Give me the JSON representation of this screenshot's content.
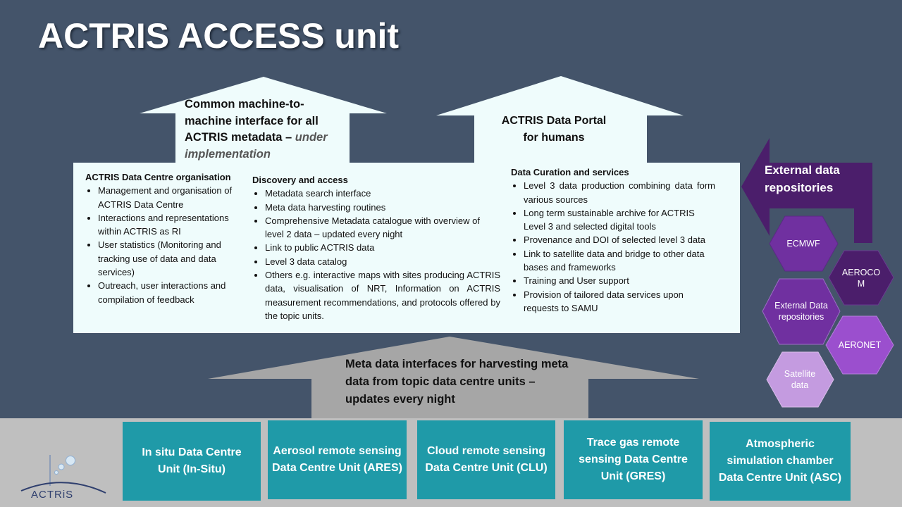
{
  "title": "ACTRIS ACCESS unit",
  "arrows": {
    "left": {
      "text_main": "Common machine-to-machine interface for all ACTRIS metadata – ",
      "text_italic": "under implementation"
    },
    "right": {
      "text": "ACTRIS Data Portal for humans"
    },
    "bottom": {
      "text": "Meta data interfaces for harvesting meta data from topic data centre units – updates every night"
    }
  },
  "panel": {
    "col1": {
      "heading": "ACTRIS Data Centre organisation",
      "items": [
        "Management and organisation of ACTRIS Data Centre",
        "Interactions and representations within ACTRIS as RI",
        "User statistics (Monitoring and tracking use of data and data services)",
        "Outreach, user interactions and compilation of feedback"
      ]
    },
    "col2": {
      "heading": "Discovery and access",
      "items": [
        "Metadata search interface",
        "Meta data harvesting routines",
        "Comprehensive Metadata catalogue with overview of level 2 data – updated every night",
        "Link to public ACTRIS data",
        "Level 3 data catalog",
        "Others e.g. interactive maps with sites producing ACTRIS data, visualisation of NRT, Information on ACTRIS measurement recommendations, and protocols offered by the topic units."
      ]
    },
    "col3": {
      "heading": "Data Curation and services",
      "items": [
        "Level 3 data production combining data form various sources",
        "Long term sustainable archive for ACTRIS Level 3 and selected digital tools",
        "Provenance and DOI of selected level 3 data",
        "Link to satellite data and bridge to other data bases and frameworks",
        "Training and User support",
        "Provision of tailored data services upon requests to SAMU"
      ]
    }
  },
  "external": {
    "label": "External data repositories",
    "hexagons": [
      {
        "label": "ECMWF",
        "color": "#7030a0"
      },
      {
        "label": "AEROCOM",
        "color": "#4b1e6b"
      },
      {
        "label": "External Data repositories",
        "color": "#7030a0"
      },
      {
        "label": "AERONET",
        "color": "#9b4fce"
      },
      {
        "label": "Satellite data",
        "color": "#c49be0"
      }
    ]
  },
  "units": [
    {
      "label": "In situ Data Centre Unit (In-Situ)"
    },
    {
      "label": "Aerosol remote sensing Data Centre Unit (ARES)"
    },
    {
      "label": "Cloud remote sensing Data Centre Unit (CLU)"
    },
    {
      "label": "Trace gas remote sensing Data Centre Unit (GRES)"
    },
    {
      "label": "Atmospheric simulation chamber Data Centre Unit (ASC)"
    }
  ],
  "logo": {
    "text": "ACTRiS"
  },
  "colors": {
    "background": "#44546a",
    "panel": "#effcfc",
    "unit": "#1f9aa8",
    "bottom_band": "#bfbfbf",
    "bottom_arrow": "#a6a6a6",
    "external_arrow": "#4b1e6b"
  }
}
